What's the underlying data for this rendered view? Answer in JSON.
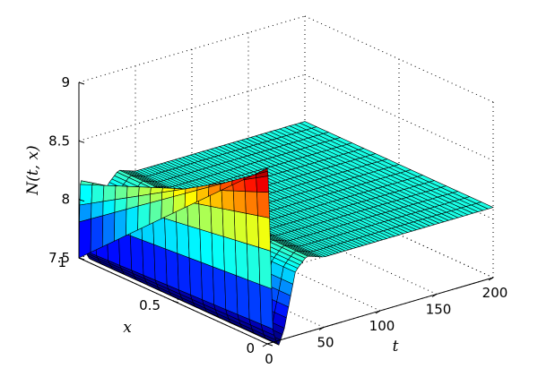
{
  "chart_data": {
    "type": "surface",
    "title": "",
    "xlabel": "t",
    "ylabel": "x",
    "zlabel": "N(t, x)",
    "xlim": [
      0,
      200
    ],
    "ylim": [
      0,
      1
    ],
    "zlim": [
      7.5,
      9
    ],
    "xticks": [
      "0",
      "50",
      "100",
      "150",
      "200"
    ],
    "yticks": [
      "0",
      "0.5",
      "1"
    ],
    "zticks": [
      "7.5",
      "8",
      "8.5",
      "9"
    ],
    "grid": true,
    "colormap": "jet",
    "surface_samples": {
      "t_at_x_any": [
        0,
        5,
        10,
        15,
        25,
        35,
        50,
        100,
        150,
        200
      ],
      "N": [
        9.0,
        7.55,
        7.45,
        7.58,
        8.05,
        8.15,
        8.1,
        8.1,
        8.1,
        8.1
      ],
      "note_initial_profile": "at t = 0, N rises linearly from 7.5 at x = 1 to about 9 at x = 0"
    },
    "colors": {
      "low": "#0000a0",
      "high": "#800000",
      "plateau": "#16b8c8"
    }
  }
}
